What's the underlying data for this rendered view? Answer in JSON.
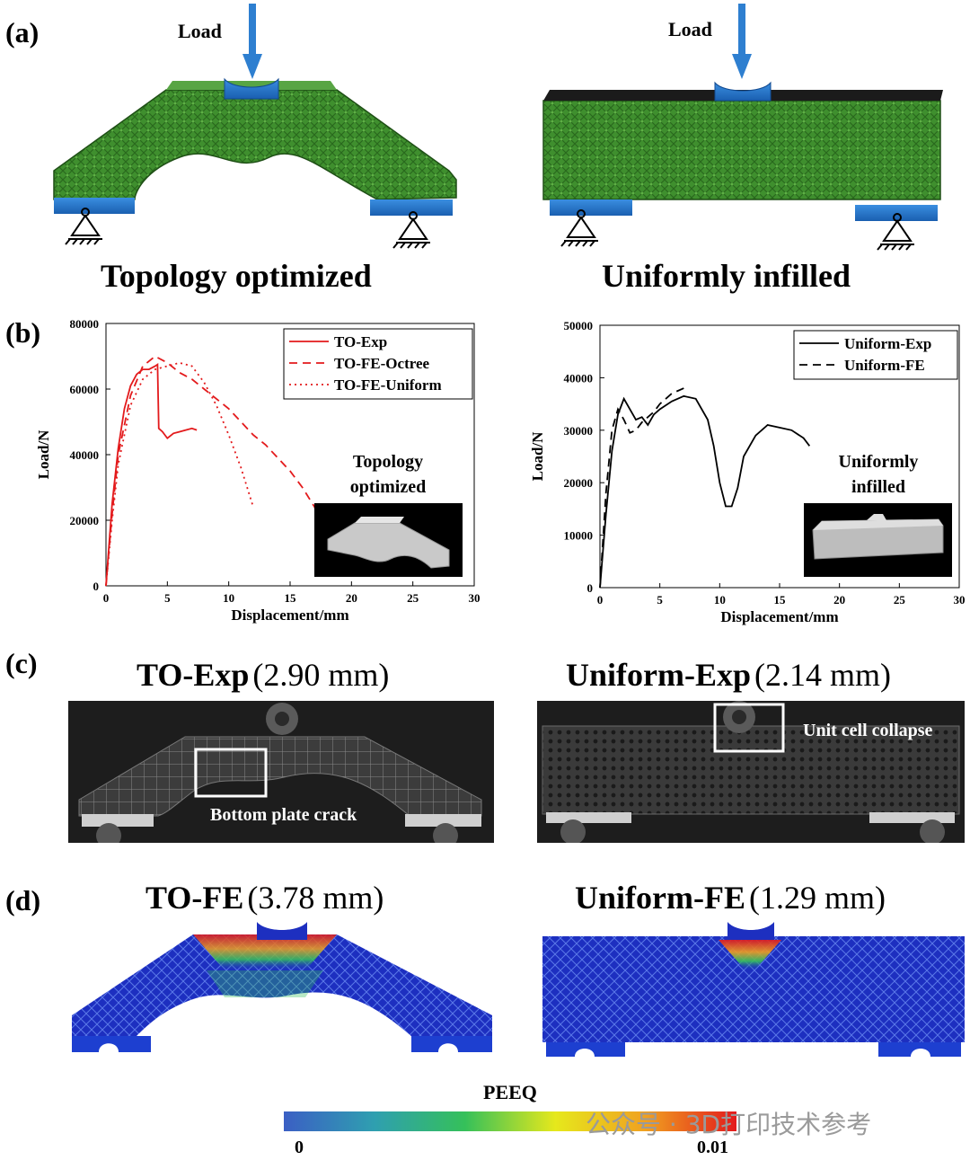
{
  "panels": {
    "a": {
      "letter": "(a)",
      "left": {
        "load": "Load",
        "title": "Topology optimized"
      },
      "right": {
        "load": "Load",
        "title": "Uniformly infilled"
      }
    },
    "b": {
      "letter": "(b)"
    },
    "c": {
      "letter": "(c)",
      "left": {
        "title": "TO-Exp",
        "value": "(2.90 mm)",
        "annotation": "Bottom plate crack"
      },
      "right": {
        "title": "Uniform-Exp",
        "value": "(2.14 mm)",
        "annotation": "Unit cell collapse"
      }
    },
    "d": {
      "letter": "(d)",
      "left": {
        "title": "TO-FE",
        "value": "(3.78 mm)"
      },
      "right": {
        "title": "Uniform-FE",
        "value": "(1.29 mm)"
      }
    }
  },
  "colorbar": {
    "title": "PEEQ",
    "min_label": "0",
    "max_label": "0.01",
    "colors": [
      "#3b5fc4",
      "#2f9fb0",
      "#35c05a",
      "#e6e81c",
      "#f0a020",
      "#e31a1c"
    ]
  },
  "watermark": "公众号 · 3D打印技术参考",
  "chart_data": [
    {
      "type": "line",
      "xlabel": "Displacement/mm",
      "ylabel": "Load/N",
      "xlim": [
        0,
        30
      ],
      "ylim": [
        0,
        80000
      ],
      "xticks": [
        0,
        5,
        10,
        15,
        20,
        25,
        30
      ],
      "yticks": [
        0,
        20000,
        40000,
        60000,
        80000
      ],
      "legend_position": "top-right",
      "inset_label": [
        "Topology",
        "optimized"
      ],
      "series": [
        {
          "name": "TO-Exp",
          "style": "solid",
          "color": "#e31a1c",
          "x": [
            0,
            0.5,
            1,
            1.5,
            2,
            2.5,
            3,
            3.5,
            4,
            4.2,
            4.3,
            4.6,
            5,
            5.5,
            6,
            6.5,
            7,
            7.4
          ],
          "y": [
            0,
            25000,
            42000,
            54000,
            61000,
            64500,
            66000,
            66000,
            67000,
            67500,
            48000,
            47000,
            45000,
            46500,
            47000,
            47500,
            48000,
            47500
          ]
        },
        {
          "name": "TO-FE-Octree",
          "style": "dashed",
          "color": "#e31a1c",
          "x": [
            0,
            0.5,
            1,
            2,
            3,
            4,
            5,
            6,
            7,
            8,
            9,
            10,
            11,
            12,
            13,
            14,
            15,
            16,
            17,
            17.5
          ],
          "y": [
            0,
            22000,
            40000,
            58000,
            67000,
            70000,
            68000,
            65000,
            63000,
            60000,
            57000,
            54000,
            50000,
            46000,
            43000,
            39000,
            35000,
            30000,
            24000,
            18000
          ]
        },
        {
          "name": "TO-FE-Uniform",
          "style": "dotted",
          "color": "#e31a1c",
          "x": [
            0,
            0.5,
            1,
            2,
            3,
            4,
            5,
            6,
            7,
            8,
            9,
            10,
            11,
            11.5,
            12
          ],
          "y": [
            0,
            20000,
            37000,
            55000,
            63000,
            66000,
            67000,
            68000,
            67000,
            62000,
            55000,
            46000,
            36000,
            30000,
            24000
          ]
        }
      ]
    },
    {
      "type": "line",
      "xlabel": "Displacement/mm",
      "ylabel": "Load/N",
      "xlim": [
        0,
        30
      ],
      "ylim": [
        0,
        50000
      ],
      "xticks": [
        0,
        5,
        10,
        15,
        20,
        25,
        30
      ],
      "yticks": [
        0,
        10000,
        20000,
        30000,
        40000,
        50000
      ],
      "legend_position": "top-right",
      "inset_label": [
        "Uniformly",
        "infilled"
      ],
      "series": [
        {
          "name": "Uniform-Exp",
          "style": "solid",
          "color": "#000000",
          "x": [
            0,
            0.5,
            1,
            1.5,
            2,
            2.5,
            3,
            3.5,
            4,
            4.5,
            5,
            6,
            7,
            8,
            9,
            9.5,
            10,
            10.5,
            11,
            11.5,
            12,
            13,
            14,
            15,
            16,
            17,
            17.5
          ],
          "y": [
            0,
            14000,
            26000,
            33000,
            36000,
            34000,
            32000,
            32500,
            31000,
            33000,
            34000,
            35500,
            36500,
            36000,
            32000,
            27000,
            20000,
            15500,
            15500,
            19000,
            25000,
            29000,
            31000,
            30500,
            30000,
            28500,
            27000
          ]
        },
        {
          "name": "Uniform-FE",
          "style": "dashed",
          "color": "#000000",
          "x": [
            0,
            0.5,
            1,
            1.5,
            2,
            2.5,
            3,
            3.5,
            4,
            4.5,
            5,
            6,
            7
          ],
          "y": [
            0,
            18000,
            30000,
            34000,
            32000,
            29500,
            30000,
            31500,
            32500,
            33500,
            35000,
            37000,
            38000
          ]
        }
      ]
    }
  ]
}
